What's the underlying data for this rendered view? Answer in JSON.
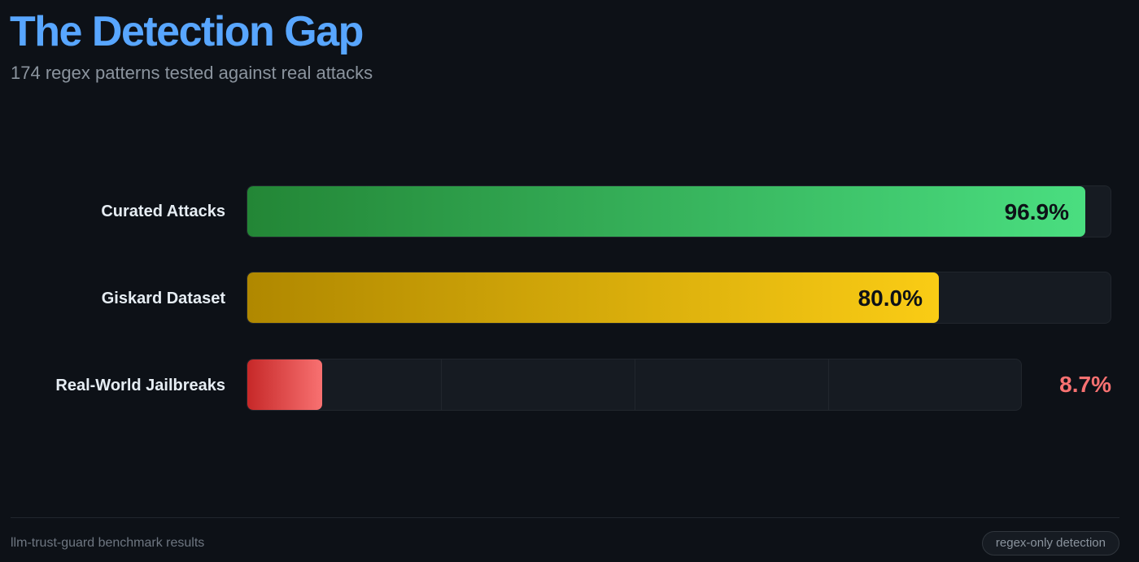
{
  "header": {
    "title": "The Detection Gap",
    "subtitle": "174 regex patterns tested against real attacks"
  },
  "footer": {
    "source": "llm-trust-guard benchmark results",
    "badge": "regex-only detection"
  },
  "colors": {
    "background": "#0d1117",
    "title": "#58a6ff",
    "green": "#4ade80",
    "yellow": "#facc15",
    "red": "#f87171"
  },
  "chart_data": {
    "type": "bar",
    "orientation": "horizontal",
    "categories": [
      "Curated Attacks",
      "Giskard Dataset",
      "Real-World Jailbreaks"
    ],
    "values": [
      96.9,
      80.0,
      8.7
    ],
    "value_labels": [
      "96.9%",
      "80.0%",
      "8.7%"
    ],
    "colors": [
      "#4ade80",
      "#facc15",
      "#f87171"
    ],
    "xlim": [
      0,
      100
    ],
    "grid": false,
    "legend": "none"
  }
}
